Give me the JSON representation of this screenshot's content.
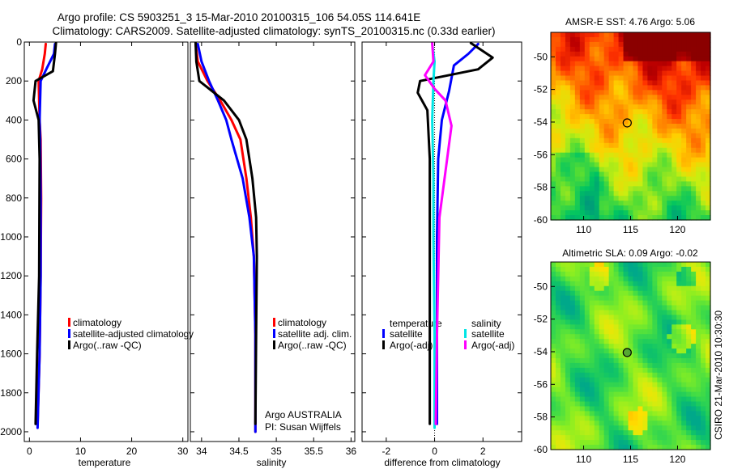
{
  "title_lines": [
    "Argo profile: CS 5903251_3 15-Mar-2010 20100315_106 54.05S 114.641E",
    "Climatology: CARS2009. Satellite-adjusted climatology: synTS_20100315.nc (0.33d earlier)"
  ],
  "colors": {
    "climatology": "#ff0000",
    "satellite": "#0000ff",
    "argo": "#000000",
    "satellite_salinity": "#00e5e5",
    "argo_salinity_adj": "#ff00ff"
  },
  "side_note": "CSIRO 21-Mar-2010 10:30:30",
  "chart_data": [
    {
      "type": "line",
      "name": "temperature",
      "xlabel": "temperature",
      "ylabel": "",
      "xlim": [
        -1,
        31
      ],
      "ylim": [
        2050,
        0
      ],
      "xticks": [
        "0",
        "10",
        "20",
        "30"
      ],
      "xtick_values": [
        0,
        10,
        20,
        30
      ],
      "yticks": [
        "0",
        "200",
        "400",
        "600",
        "800",
        "1000",
        "1200",
        "1400",
        "1600",
        "1800",
        "2000"
      ],
      "ytick_values": [
        0,
        200,
        400,
        600,
        800,
        1000,
        1200,
        1400,
        1600,
        1800,
        2000
      ],
      "legend": [
        "climatology",
        "satellite-adjusted climatology",
        "Argo(..raw -QC)"
      ],
      "series": [
        {
          "name": "climatology",
          "color_key": "climatology",
          "x": [
            3.2,
            3.0,
            2.5,
            1.8,
            2.0,
            2.2,
            2.3,
            2.2,
            2.0,
            1.6
          ],
          "y": [
            10,
            60,
            140,
            200,
            400,
            500,
            800,
            1200,
            1600,
            1960
          ]
        },
        {
          "name": "satellite-adjusted climatology",
          "color_key": "satellite",
          "x": [
            5.0,
            4.8,
            3.3,
            2.2,
            2.0,
            2.1,
            2.2,
            2.2,
            2.0,
            1.6
          ],
          "y": [
            10,
            60,
            140,
            200,
            400,
            500,
            800,
            1200,
            1600,
            1980
          ]
        },
        {
          "name": "Argo(..raw -QC)",
          "color_key": "argo",
          "x": [
            5.2,
            5.0,
            4.6,
            1.2,
            0.8,
            1.8,
            2.0,
            1.9,
            1.5,
            1.2
          ],
          "y": [
            5,
            60,
            150,
            200,
            300,
            400,
            600,
            1200,
            1600,
            1960
          ]
        }
      ]
    },
    {
      "type": "line",
      "name": "salinity",
      "xlabel": "salinity",
      "xlim": [
        33.85,
        36.05
      ],
      "ylim": [
        2050,
        0
      ],
      "xticks": [
        "34",
        "34.5",
        "35",
        "35.5",
        "36"
      ],
      "xtick_values": [
        34,
        34.5,
        35,
        35.5,
        36
      ],
      "legend": [
        "climatology",
        "satellite adj. clim.",
        "Argo(..raw -QC)"
      ],
      "annotations": [
        "Argo AUSTRALIA",
        "PI: Susan Wijffels"
      ],
      "series": [
        {
          "name": "climatology",
          "color_key": "climatology",
          "x": [
            33.92,
            33.95,
            34.08,
            34.25,
            34.4,
            34.52,
            34.6,
            34.66,
            34.7,
            34.72,
            34.72
          ],
          "y": [
            10,
            100,
            200,
            300,
            400,
            500,
            700,
            900,
            1100,
            1500,
            2000
          ]
        },
        {
          "name": "satellite adj. clim.",
          "color_key": "satellite",
          "x": [
            33.95,
            34.0,
            34.1,
            34.22,
            34.33,
            34.4,
            34.55,
            34.64,
            34.7,
            34.72,
            34.72
          ],
          "y": [
            10,
            100,
            200,
            300,
            400,
            500,
            700,
            900,
            1100,
            1500,
            2000
          ]
        },
        {
          "name": "Argo(..raw -QC)",
          "color_key": "argo",
          "x": [
            33.92,
            33.93,
            33.97,
            34.3,
            34.5,
            34.6,
            34.68,
            34.73,
            34.74,
            34.73,
            34.72
          ],
          "y": [
            5,
            100,
            200,
            300,
            400,
            500,
            700,
            900,
            1100,
            1500,
            1960
          ]
        }
      ]
    },
    {
      "type": "line",
      "name": "difference",
      "xlabel": "difference from climatology",
      "xlim": [
        -3,
        3.6
      ],
      "ylim": [
        2050,
        0
      ],
      "xticks": [
        "-2",
        "0",
        "2"
      ],
      "xtick_values": [
        -2,
        0,
        2
      ],
      "legend_titles": [
        "temperature",
        "salinity"
      ],
      "legend": [
        "satellite",
        "Argo(-adj)",
        "satellite",
        "Argo(-adj)"
      ],
      "series": [
        {
          "name": "temperature satellite",
          "color_key": "satellite",
          "x": [
            1.8,
            1.4,
            0.8,
            0.6,
            0.3,
            0.15,
            0.1,
            0.1,
            0.1
          ],
          "y": [
            10,
            60,
            120,
            250,
            400,
            600,
            1000,
            1600,
            1960
          ]
        },
        {
          "name": "temperature Argo(-adj)",
          "color_key": "argo",
          "x": [
            1.5,
            2.4,
            1.8,
            -0.6,
            -0.7,
            -0.3,
            -0.2,
            -0.2,
            -0.2,
            -0.2
          ],
          "y": [
            5,
            80,
            140,
            200,
            260,
            350,
            600,
            1000,
            1600,
            1960
          ]
        },
        {
          "name": "salinity satellite",
          "color_key": "satellite_salinity",
          "x": [
            -0.1,
            0.0,
            -0.05,
            -0.1,
            -0.05,
            -0.05,
            0.0,
            0.0
          ],
          "y": [
            10,
            100,
            200,
            400,
            700,
            1000,
            1500,
            1980
          ]
        },
        {
          "name": "salinity Argo(-adj)",
          "color_key": "argo_salinity_adj",
          "x": [
            -0.1,
            -0.05,
            -0.4,
            0.0,
            0.45,
            0.7,
            0.2,
            0.1,
            0.05
          ],
          "y": [
            5,
            100,
            170,
            240,
            300,
            430,
            900,
            1500,
            1960
          ]
        }
      ]
    },
    {
      "type": "heatmap",
      "name": "amsr-e-sst",
      "title": "AMSR-E SST: 4.76 Argo: 5.06",
      "xlim": [
        106.5,
        123.5
      ],
      "ylim": [
        -60,
        -48.5
      ],
      "xticks": [
        "110",
        "115",
        "120"
      ],
      "xtick_values": [
        110,
        115,
        120
      ],
      "yticks": [
        "-50",
        "-52",
        "-54",
        "-56",
        "-58",
        "-60"
      ],
      "ytick_values": [
        -50,
        -52,
        -54,
        -56,
        -58,
        -60
      ],
      "marker": {
        "lon": 114.64,
        "lat": -54.05
      },
      "color_scale": [
        "#009a7a",
        "#00c462",
        "#55dd33",
        "#c8ee11",
        "#ffd000",
        "#ff8800",
        "#ff3300",
        "#c00000",
        "#8b0000"
      ]
    },
    {
      "type": "heatmap",
      "name": "altimetric-sla",
      "title": "Altimetric SLA: 0.09 Argo: -0.02",
      "xlim": [
        106.5,
        123.5
      ],
      "ylim": [
        -60,
        -48.5
      ],
      "xticks": [
        "110",
        "115",
        "120"
      ],
      "xtick_values": [
        110,
        115,
        120
      ],
      "yticks": [
        "-50",
        "-52",
        "-54",
        "-56",
        "-58",
        "-60"
      ],
      "ytick_values": [
        -50,
        -52,
        -54,
        -56,
        -58,
        -60
      ],
      "marker": {
        "lon": 114.64,
        "lat": -54.05
      },
      "color_scale": [
        "#00a88a",
        "#11c566",
        "#44dd44",
        "#88ee22",
        "#ccee11",
        "#ffe000",
        "#ffb000",
        "#ff8800"
      ]
    }
  ]
}
